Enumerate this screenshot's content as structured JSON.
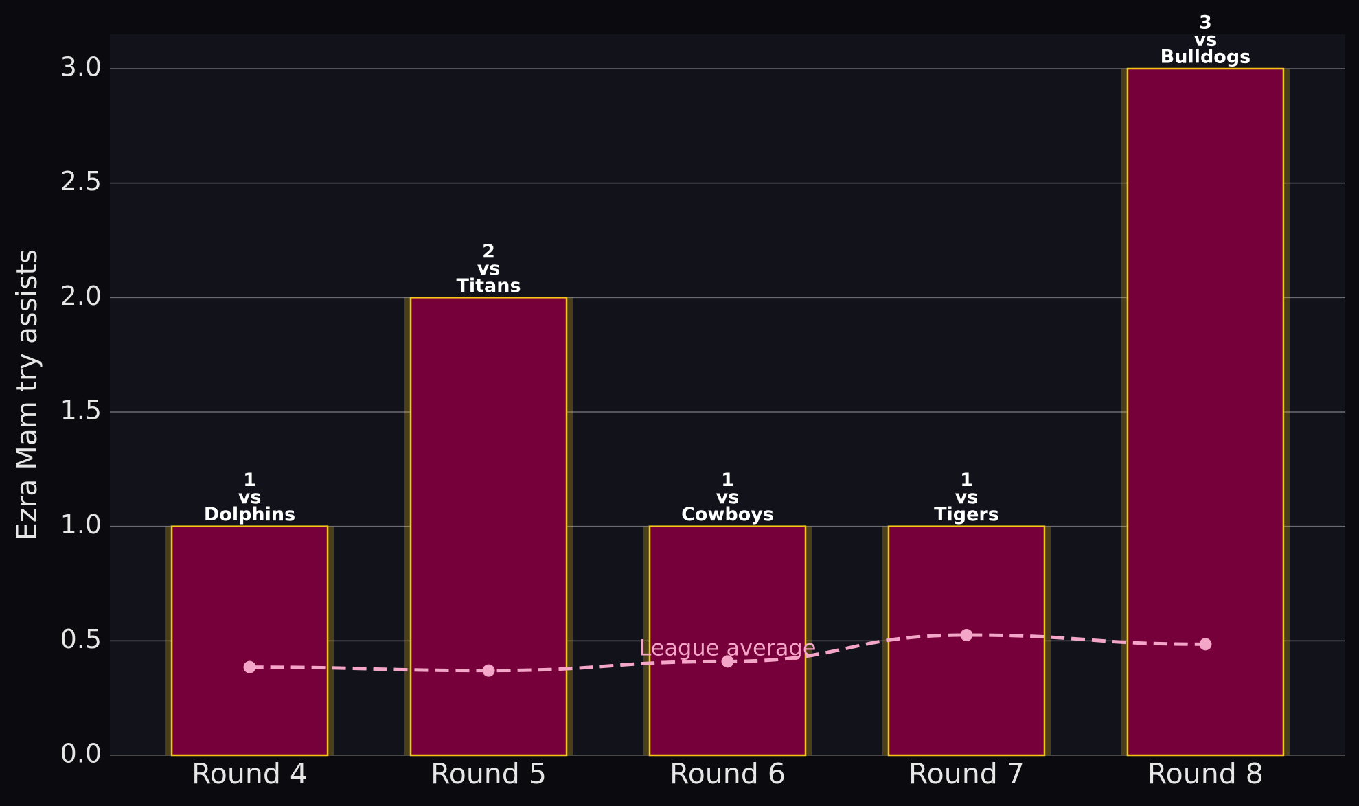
{
  "chart_data": {
    "type": "bar",
    "y_label": "Ezra Mam try assists",
    "categories": [
      "Round 4",
      "Round 5",
      "Round 6",
      "Round 7",
      "Round 8"
    ],
    "values": [
      1,
      2,
      1,
      1,
      3
    ],
    "label_joiner": "vs",
    "opponents": [
      "Dolphins",
      "Titans",
      "Cowboys",
      "Tigers",
      "Bulldogs"
    ],
    "color": "#75003a",
    "edge_color": "#f5c518",
    "line_series": {
      "name": "League average",
      "color": "#f4a6c8",
      "values": [
        0.385,
        0.37,
        0.41,
        0.525,
        0.485
      ]
    },
    "ylim": [
      0,
      3.15
    ],
    "yticks": [
      {
        "value": 0,
        "label": "0.0"
      },
      {
        "value": 0.5,
        "label": "0.5"
      },
      {
        "value": 1,
        "label": "1.0"
      },
      {
        "value": 1.5,
        "label": "1.5"
      },
      {
        "value": 2,
        "label": "2.0"
      },
      {
        "value": 2.5,
        "label": "2.5"
      },
      {
        "value": 3,
        "label": "3.0"
      }
    ],
    "grid": true
  }
}
